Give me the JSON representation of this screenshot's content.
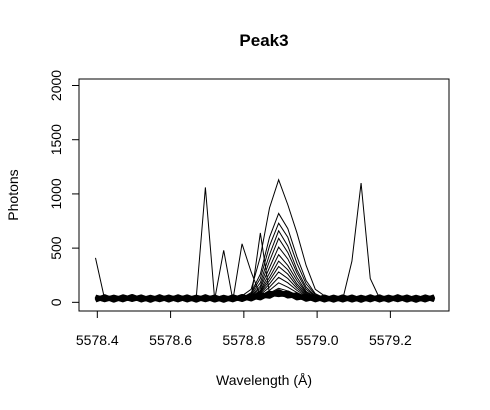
{
  "chart_data": {
    "type": "line",
    "title": "Peak3",
    "xlabel": "Wavelength (Å)",
    "ylabel": "Photons",
    "xlim": [
      5578.35,
      5579.36
    ],
    "ylim": [
      -80,
      2060
    ],
    "x_ticks": [
      5578.4,
      5578.6,
      5578.8,
      5579.0,
      5579.2
    ],
    "x_tick_labels": [
      "5578.4",
      "5578.6",
      "5578.8",
      "5579.0",
      "5579.2"
    ],
    "y_ticks": [
      0,
      500,
      1000,
      1500,
      2000
    ],
    "y_tick_labels": [
      "0",
      "500",
      "1000",
      "1500",
      "2000"
    ],
    "grid": false,
    "legend": "none",
    "x": [
      5578.395,
      5578.42,
      5578.445,
      5578.47,
      5578.495,
      5578.52,
      5578.545,
      5578.57,
      5578.595,
      5578.62,
      5578.645,
      5578.67,
      5578.695,
      5578.72,
      5578.745,
      5578.77,
      5578.795,
      5578.82,
      5578.845,
      5578.87,
      5578.895,
      5578.92,
      5578.945,
      5578.97,
      5578.995,
      5579.02,
      5579.045,
      5579.07,
      5579.095,
      5579.12,
      5579.145,
      5579.17,
      5579.195,
      5579.22,
      5579.245,
      5579.27,
      5579.295,
      5579.32
    ],
    "series": [
      {
        "values": [
          410,
          30,
          35,
          40,
          30,
          45,
          30,
          20,
          40,
          60,
          50,
          40,
          1060,
          40,
          30,
          20,
          540,
          280,
          60,
          90,
          80,
          60,
          50,
          40,
          60,
          40,
          30,
          20,
          20,
          30,
          40,
          30,
          20,
          40,
          30,
          20,
          20,
          40
        ]
      },
      {
        "values": [
          30,
          25,
          20,
          30,
          35,
          20,
          40,
          30,
          20,
          30,
          40,
          30,
          30,
          20,
          480,
          20,
          30,
          40,
          640,
          80,
          60,
          50,
          40,
          30,
          40,
          50,
          40,
          30,
          380,
          1100,
          220,
          40,
          30,
          40,
          30,
          40,
          30,
          20
        ]
      },
      {
        "values": [
          20,
          30,
          25,
          35,
          30,
          25,
          30,
          20,
          25,
          30,
          35,
          40,
          30,
          25,
          30,
          40,
          60,
          120,
          420,
          870,
          1130,
          900,
          640,
          340,
          120,
          60,
          40,
          30,
          25,
          20,
          30,
          35,
          40,
          30,
          25,
          30,
          20,
          25
        ]
      },
      {
        "values": [
          30,
          20,
          30,
          25,
          20,
          30,
          25,
          30,
          20,
          25,
          30,
          25,
          20,
          30,
          25,
          20,
          40,
          90,
          260,
          600,
          820,
          680,
          420,
          200,
          80,
          40,
          30,
          25,
          30,
          20,
          25,
          30,
          20,
          25,
          30,
          20,
          25,
          30
        ]
      },
      {
        "values": [
          25,
          30,
          20,
          25,
          30,
          20,
          25,
          30,
          25,
          20,
          30,
          25,
          30,
          20,
          25,
          30,
          40,
          80,
          220,
          520,
          730,
          600,
          360,
          170,
          70,
          35,
          25,
          30,
          20,
          25,
          30,
          25,
          20,
          30,
          25,
          30,
          20,
          25
        ]
      },
      {
        "values": [
          20,
          25,
          30,
          20,
          25,
          30,
          20,
          25,
          30,
          25,
          20,
          30,
          25,
          30,
          20,
          25,
          35,
          70,
          180,
          440,
          660,
          520,
          300,
          140,
          60,
          30,
          25,
          20,
          30,
          25,
          20,
          30,
          25,
          20,
          30,
          25,
          30,
          20
        ]
      },
      {
        "values": [
          30,
          25,
          20,
          30,
          25,
          20,
          30,
          25,
          20,
          30,
          25,
          20,
          30,
          25,
          20,
          30,
          35,
          60,
          150,
          380,
          590,
          460,
          270,
          120,
          55,
          30,
          20,
          25,
          30,
          20,
          25,
          30,
          20,
          25,
          30,
          20,
          25,
          30
        ]
      },
      {
        "values": [
          25,
          20,
          30,
          25,
          20,
          30,
          25,
          20,
          30,
          25,
          20,
          30,
          25,
          20,
          30,
          25,
          30,
          55,
          130,
          320,
          510,
          400,
          230,
          100,
          50,
          25,
          30,
          20,
          25,
          30,
          20,
          25,
          30,
          20,
          25,
          30,
          20,
          25
        ]
      },
      {
        "values": [
          20,
          30,
          25,
          20,
          30,
          25,
          20,
          30,
          25,
          20,
          30,
          25,
          20,
          30,
          25,
          20,
          30,
          50,
          110,
          270,
          440,
          340,
          200,
          90,
          45,
          30,
          25,
          20,
          30,
          25,
          20,
          30,
          25,
          20,
          30,
          25,
          20,
          30
        ]
      },
      {
        "values": [
          30,
          25,
          30,
          20,
          25,
          30,
          20,
          25,
          30,
          20,
          25,
          30,
          20,
          25,
          30,
          20,
          30,
          45,
          100,
          230,
          380,
          300,
          170,
          80,
          40,
          25,
          30,
          25,
          20,
          30,
          25,
          20,
          30,
          25,
          20,
          30,
          25,
          20
        ]
      },
      {
        "values": [
          25,
          30,
          20,
          30,
          20,
          25,
          30,
          20,
          25,
          30,
          20,
          25,
          30,
          20,
          25,
          30,
          28,
          42,
          90,
          200,
          330,
          260,
          150,
          70,
          38,
          28,
          20,
          30,
          25,
          20,
          30,
          25,
          20,
          30,
          25,
          20,
          30,
          25
        ]
      },
      {
        "values": [
          20,
          25,
          30,
          25,
          30,
          20,
          25,
          30,
          20,
          25,
          30,
          20,
          25,
          30,
          20,
          25,
          28,
          40,
          80,
          170,
          280,
          220,
          130,
          62,
          35,
          25,
          30,
          20,
          25,
          30,
          20,
          25,
          30,
          20,
          25,
          30,
          20,
          25
        ]
      },
      {
        "values": [
          30,
          20,
          25,
          30,
          25,
          20,
          30,
          25,
          20,
          30,
          25,
          20,
          30,
          25,
          20,
          30,
          26,
          38,
          70,
          140,
          230,
          180,
          110,
          55,
          32,
          28,
          25,
          30,
          20,
          25,
          30,
          20,
          25,
          30,
          20,
          25,
          30,
          20
        ]
      },
      {
        "values": [
          25,
          28,
          22,
          30,
          26,
          24,
          28,
          22,
          26,
          30,
          24,
          26,
          22,
          28,
          26,
          24,
          27,
          35,
          60,
          110,
          180,
          140,
          90,
          48,
          30,
          26,
          28,
          24,
          26,
          22,
          28,
          26,
          24,
          28,
          22,
          26,
          24,
          28
        ]
      },
      {
        "values": [
          22,
          26,
          28,
          24,
          22,
          28,
          26,
          24,
          22,
          26,
          28,
          24,
          22,
          26,
          28,
          24,
          25,
          32,
          50,
          85,
          130,
          105,
          70,
          40,
          28,
          24,
          22,
          26,
          28,
          24,
          22,
          26,
          28,
          24,
          22,
          26,
          28,
          24
        ]
      }
    ],
    "baseline_band": {
      "center": [
        35,
        38,
        34,
        37,
        40,
        36,
        33,
        38,
        35,
        37,
        36,
        34,
        38,
        35,
        33,
        37,
        40,
        45,
        55,
        70,
        85,
        72,
        55,
        42,
        37,
        35,
        34,
        36,
        35,
        33,
        37,
        36,
        34,
        38,
        35,
        33,
        36,
        38
      ],
      "spread": 14
    }
  }
}
